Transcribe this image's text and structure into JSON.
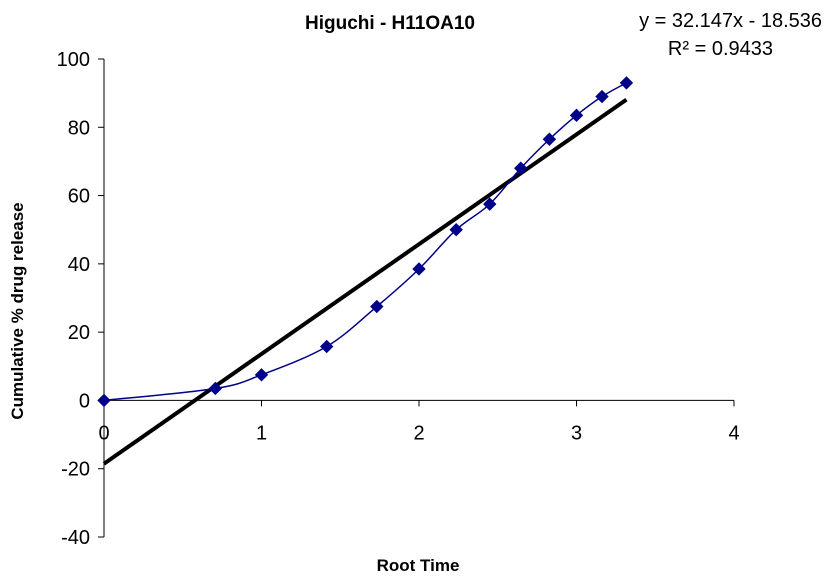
{
  "chart_data": {
    "type": "scatter",
    "title": "Higuchi - H11OA10",
    "xlabel": "Root Time",
    "ylabel": "Cumulative % drug release",
    "xlim": [
      0,
      4
    ],
    "ylim": [
      -40,
      100
    ],
    "x_ticks": [
      "0",
      "1",
      "2",
      "3",
      "4"
    ],
    "y_ticks": [
      "100",
      "80",
      "60",
      "40",
      "20",
      "0",
      "-20",
      "-40"
    ],
    "grid": false,
    "legend": "none",
    "series": [
      {
        "color": "#00008B",
        "marker": "diamond",
        "line": "smooth",
        "points": [
          {
            "x": 0,
            "y": 0
          },
          {
            "x": 0.707,
            "y": 3.5
          },
          {
            "x": 1.0,
            "y": 7.5
          },
          {
            "x": 1.414,
            "y": 15.8
          },
          {
            "x": 1.732,
            "y": 27.5
          },
          {
            "x": 2.0,
            "y": 38.5
          },
          {
            "x": 2.236,
            "y": 50.0
          },
          {
            "x": 2.449,
            "y": 57.5
          },
          {
            "x": 2.646,
            "y": 68.0
          },
          {
            "x": 2.828,
            "y": 76.5
          },
          {
            "x": 3.0,
            "y": 83.5
          },
          {
            "x": 3.162,
            "y": 89.0
          },
          {
            "x": 3.317,
            "y": 93.0
          }
        ]
      }
    ],
    "trendline": {
      "color": "#000000",
      "slope": 32.147,
      "intercept": -18.536,
      "x_range": [
        0,
        3.317
      ],
      "equation_label": "y = 32.147x - 18.536",
      "r2_label": "R² = 0.9433"
    }
  }
}
